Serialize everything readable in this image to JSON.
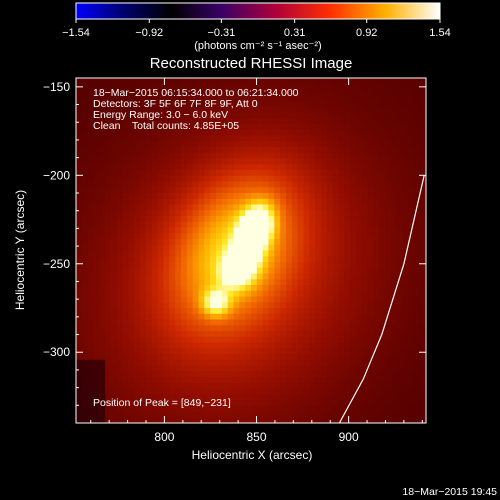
{
  "chart_data": {
    "type": "heatmap",
    "title": "Reconstructed RHESSI Image",
    "xlabel": "Heliocentric X (arcsec)",
    "ylabel": "Heliocentric Y (arcsec)",
    "xlim": [
      752,
      942
    ],
    "ylim": [
      -340,
      -145
    ],
    "x_ticks": [
      800,
      850,
      900
    ],
    "y_ticks": [
      -150,
      -200,
      -250,
      -300
    ],
    "x_tick_labels": [
      "800",
      "850",
      "900"
    ],
    "y_tick_labels": [
      "−150",
      "−200",
      "−250",
      "−300"
    ],
    "colorbar": {
      "min": -1.54,
      "max": 1.54,
      "tick_values": [
        -1.54,
        -0.92,
        -0.31,
        0.31,
        0.92,
        1.54
      ],
      "tick_labels": [
        "−1.54",
        "−0.92",
        "−0.31",
        "0.31",
        "0.92",
        "1.54"
      ],
      "units_label": "(photons cm⁻² s⁻¹ asec⁻²)"
    },
    "annotations": [
      "18−Mar−2015 06:15:34.000 to 06:21:34.000",
      "Detectors: 3F 5F 6F 7F 8F 9F, Att 0",
      "Energy Range: 3.0 − 6.0 keV",
      "Clean    Total counts: 4.85E+05"
    ],
    "peak_label": "Position of Peak = [849,−231]",
    "peak": {
      "x": 849,
      "y": -231
    },
    "sources": [
      {
        "x": 849,
        "y": -231,
        "sx": 5.5,
        "sy": 9,
        "angle": 20,
        "amp": 1.0
      },
      {
        "x": 841,
        "y": -252,
        "sx": 6,
        "sy": 8,
        "angle": 30,
        "amp": 0.65
      },
      {
        "x": 828,
        "y": -272,
        "sx": 5,
        "sy": 5,
        "angle": 0,
        "amp": 0.48
      },
      {
        "x": 838,
        "y": -242,
        "sx": 20,
        "sy": 30,
        "angle": 25,
        "amp": 0.45
      },
      {
        "x": 840,
        "y": -255,
        "sx": 48,
        "sy": 58,
        "angle": 30,
        "amp": 0.28
      }
    ],
    "background_level": 0.12,
    "limb_curve": [
      [
        941,
        -200
      ],
      [
        930,
        -250
      ],
      [
        918,
        -290
      ],
      [
        908,
        -315
      ],
      [
        895,
        -340
      ]
    ],
    "timestamp": "18−Mar−2015 19:45"
  }
}
